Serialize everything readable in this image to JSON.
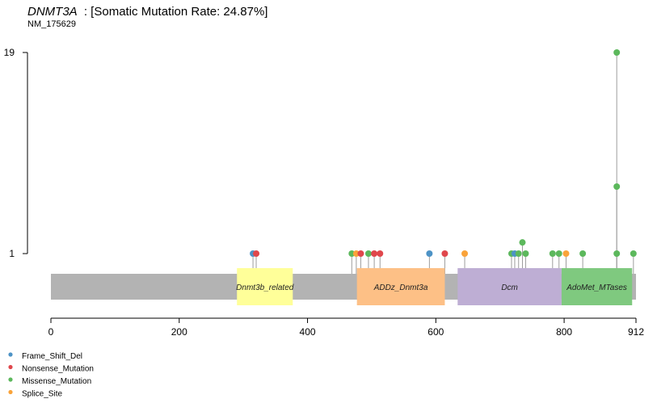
{
  "chart_data": {
    "type": "lollipop",
    "title": {
      "gene": "DNMT3A",
      "suffix": ": [Somatic Mutation Rate: 24.87%]"
    },
    "subtitle": "NM_175629",
    "protein_length": 912,
    "x_ticks": [
      {
        "value": 0,
        "label": "0"
      },
      {
        "value": 200,
        "label": "200"
      },
      {
        "value": 400,
        "label": "400"
      },
      {
        "value": 600,
        "label": "600"
      },
      {
        "value": 800,
        "label": "800"
      },
      {
        "value": 912,
        "label": "912"
      }
    ],
    "y_ticks": [
      {
        "value": 1,
        "label": "1"
      },
      {
        "value": 19,
        "label": "19"
      }
    ],
    "ylim": [
      1,
      19
    ],
    "domains": [
      {
        "name": "Dnmt3b_related",
        "start": 290,
        "end": 377,
        "color": "#ffff99"
      },
      {
        "name": "ADDz_Dnmt3a",
        "start": 477,
        "end": 614,
        "color": "#fdc086"
      },
      {
        "name": "Dcm",
        "start": 634,
        "end": 796,
        "color": "#beaed4"
      },
      {
        "name": "AdoMet_MTases",
        "start": 796,
        "end": 906,
        "color": "#7fc97f"
      }
    ],
    "mutation_types": [
      {
        "name": "Frame_Shift_Del",
        "color": "#4d93c6"
      },
      {
        "name": "Nonsense_Mutation",
        "color": "#e0474c"
      },
      {
        "name": "Missense_Mutation",
        "color": "#5cb85c"
      },
      {
        "name": "Splice_Site",
        "color": "#f9a33a"
      }
    ],
    "mutations": [
      {
        "pos": 315,
        "count": 1,
        "type": "Frame_Shift_Del"
      },
      {
        "pos": 320,
        "count": 1,
        "type": "Nonsense_Mutation"
      },
      {
        "pos": 469,
        "count": 1,
        "type": "Missense_Mutation"
      },
      {
        "pos": 476,
        "count": 1,
        "type": "Splice_Site"
      },
      {
        "pos": 483,
        "count": 1,
        "type": "Nonsense_Mutation"
      },
      {
        "pos": 495,
        "count": 1,
        "type": "Missense_Mutation"
      },
      {
        "pos": 504,
        "count": 1,
        "type": "Nonsense_Mutation"
      },
      {
        "pos": 513,
        "count": 1,
        "type": "Nonsense_Mutation"
      },
      {
        "pos": 590,
        "count": 1,
        "type": "Frame_Shift_Del"
      },
      {
        "pos": 614,
        "count": 1,
        "type": "Nonsense_Mutation"
      },
      {
        "pos": 645,
        "count": 1,
        "type": "Splice_Site"
      },
      {
        "pos": 718,
        "count": 1,
        "type": "Missense_Mutation"
      },
      {
        "pos": 723,
        "count": 1,
        "type": "Frame_Shift_Del"
      },
      {
        "pos": 729,
        "count": 1,
        "type": "Missense_Mutation"
      },
      {
        "pos": 735,
        "count": 2,
        "type": "Missense_Mutation"
      },
      {
        "pos": 740,
        "count": 1,
        "type": "Missense_Mutation"
      },
      {
        "pos": 782,
        "count": 1,
        "type": "Missense_Mutation"
      },
      {
        "pos": 792,
        "count": 1,
        "type": "Missense_Mutation"
      },
      {
        "pos": 803,
        "count": 1,
        "type": "Splice_Site"
      },
      {
        "pos": 829,
        "count": 1,
        "type": "Missense_Mutation"
      },
      {
        "pos": 882,
        "count": 1,
        "type": "Missense_Mutation"
      },
      {
        "pos": 882,
        "count": 7,
        "type": "Missense_Mutation"
      },
      {
        "pos": 882,
        "count": 19,
        "type": "Missense_Mutation"
      },
      {
        "pos": 908,
        "count": 1,
        "type": "Missense_Mutation"
      }
    ],
    "colors": {
      "backbone": "#b3b3b3",
      "stem": "#9e9e9e",
      "axis": "#000000"
    }
  }
}
